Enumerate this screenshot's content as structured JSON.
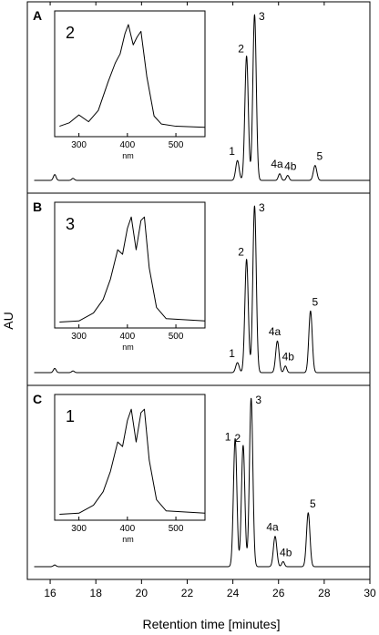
{
  "chart_data": {
    "type": "line",
    "ylabel": "AU",
    "xlabel": "Retention time [minutes]",
    "xlim": [
      15,
      30
    ],
    "x_ticks": [
      16,
      18,
      20,
      22,
      24,
      26,
      28,
      30
    ],
    "grid": false,
    "panels": [
      {
        "letter": "A",
        "peaks": [
          {
            "label": "1",
            "x": 24.2,
            "height": 0.12
          },
          {
            "label": "2",
            "x": 24.6,
            "height": 0.75
          },
          {
            "label": "3",
            "x": 24.95,
            "height": 1.0
          },
          {
            "label": "4a",
            "x": 26.05,
            "height": 0.04
          },
          {
            "label": "4b",
            "x": 26.4,
            "height": 0.03
          },
          {
            "label": "5",
            "x": 27.6,
            "height": 0.09
          }
        ],
        "minor_peaks": [
          {
            "x": 16.2,
            "height": 0.035
          },
          {
            "x": 17.0,
            "height": 0.012
          }
        ],
        "inset": {
          "label": "2",
          "xlabel": "nm",
          "xlim": [
            250,
            560
          ],
          "x_ticks": [
            300,
            400,
            500
          ],
          "spectrum": [
            [
              260,
              0.06
            ],
            [
              280,
              0.09
            ],
            [
              300,
              0.16
            ],
            [
              320,
              0.1
            ],
            [
              340,
              0.2
            ],
            [
              360,
              0.45
            ],
            [
              375,
              0.62
            ],
            [
              385,
              0.7
            ],
            [
              395,
              0.88
            ],
            [
              402,
              0.96
            ],
            [
              412,
              0.78
            ],
            [
              420,
              0.85
            ],
            [
              428,
              0.9
            ],
            [
              440,
              0.5
            ],
            [
              455,
              0.15
            ],
            [
              470,
              0.08
            ],
            [
              500,
              0.06
            ],
            [
              560,
              0.05
            ]
          ]
        }
      },
      {
        "letter": "B",
        "peaks": [
          {
            "label": "1",
            "x": 24.2,
            "height": 0.06
          },
          {
            "label": "2",
            "x": 24.6,
            "height": 0.68
          },
          {
            "label": "3",
            "x": 24.95,
            "height": 1.0
          },
          {
            "label": "4a",
            "x": 25.95,
            "height": 0.19
          },
          {
            "label": "4b",
            "x": 26.3,
            "height": 0.04
          },
          {
            "label": "5",
            "x": 27.4,
            "height": 0.37
          }
        ],
        "minor_peaks": [
          {
            "x": 16.2,
            "height": 0.025
          },
          {
            "x": 17.0,
            "height": 0.01
          }
        ],
        "inset": {
          "label": "3",
          "xlabel": "nm",
          "xlim": [
            250,
            560
          ],
          "x_ticks": [
            300,
            400,
            500
          ],
          "spectrum": [
            [
              260,
              0.02
            ],
            [
              300,
              0.03
            ],
            [
              330,
              0.1
            ],
            [
              350,
              0.22
            ],
            [
              365,
              0.4
            ],
            [
              380,
              0.66
            ],
            [
              390,
              0.62
            ],
            [
              400,
              0.85
            ],
            [
              408,
              0.95
            ],
            [
              418,
              0.66
            ],
            [
              428,
              0.92
            ],
            [
              435,
              0.95
            ],
            [
              445,
              0.5
            ],
            [
              460,
              0.15
            ],
            [
              480,
              0.05
            ],
            [
              560,
              0.03
            ]
          ]
        }
      },
      {
        "letter": "C",
        "peaks": [
          {
            "label": "1",
            "x": 24.1,
            "height": 0.76
          },
          {
            "label": "2",
            "x": 24.45,
            "height": 0.72
          },
          {
            "label": "3",
            "x": 24.8,
            "height": 1.0
          },
          {
            "label": "4a",
            "x": 25.85,
            "height": 0.18
          },
          {
            "label": "4b",
            "x": 26.2,
            "height": 0.03
          },
          {
            "label": "5",
            "x": 27.3,
            "height": 0.32
          }
        ],
        "minor_peaks": [
          {
            "x": 16.2,
            "height": 0.01
          }
        ],
        "inset": {
          "label": "1",
          "xlabel": "nm",
          "xlim": [
            250,
            560
          ],
          "x_ticks": [
            300,
            400,
            500
          ],
          "spectrum": [
            [
              260,
              0.02
            ],
            [
              300,
              0.03
            ],
            [
              330,
              0.1
            ],
            [
              350,
              0.22
            ],
            [
              365,
              0.4
            ],
            [
              380,
              0.66
            ],
            [
              390,
              0.62
            ],
            [
              400,
              0.85
            ],
            [
              408,
              0.95
            ],
            [
              418,
              0.66
            ],
            [
              428,
              0.92
            ],
            [
              435,
              0.95
            ],
            [
              445,
              0.5
            ],
            [
              460,
              0.15
            ],
            [
              480,
              0.05
            ],
            [
              560,
              0.03
            ]
          ]
        }
      }
    ]
  }
}
